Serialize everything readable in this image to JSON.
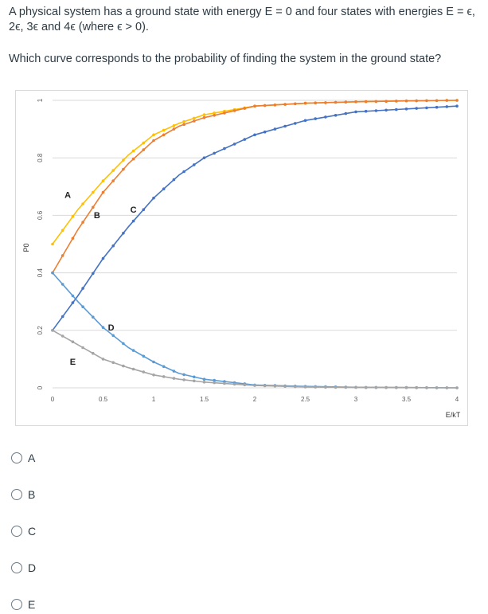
{
  "question": {
    "line1": "A physical system has a ground state with energy E = 0 and four states with energies E = ϵ, 2ϵ, 3ϵ and 4ϵ (where ϵ > 0).",
    "line2": "Which curve corresponds to the probability of finding the system in the ground state?"
  },
  "chart_data": {
    "type": "line",
    "xlabel": "E/kT",
    "ylabel": "P0",
    "xlim": [
      0,
      4
    ],
    "ylim": [
      0,
      1
    ],
    "x_ticks": [
      "0",
      "0.5",
      "1",
      "1.5",
      "2",
      "2.5",
      "3",
      "3.5",
      "4"
    ],
    "y_ticks": [
      "0",
      "0.2",
      "0.4",
      "0.6",
      "0.8",
      "1"
    ],
    "grid": "horizontal",
    "series": [
      {
        "name": "A",
        "color": "#ffc000",
        "label_at": [
          0.15,
          0.66
        ],
        "x": [
          0,
          0.25,
          0.5,
          0.75,
          1,
          1.25,
          1.5,
          2,
          2.5,
          3,
          3.5,
          4
        ],
        "y": [
          0.5,
          0.62,
          0.72,
          0.81,
          0.88,
          0.92,
          0.95,
          0.98,
          0.99,
          0.995,
          0.998,
          1.0
        ]
      },
      {
        "name": "B",
        "color": "#ed7d31",
        "label_at": [
          0.44,
          0.59
        ],
        "x": [
          0,
          0.25,
          0.5,
          0.75,
          1,
          1.25,
          1.5,
          2,
          2.5,
          3,
          3.5,
          4
        ],
        "y": [
          0.4,
          0.55,
          0.68,
          0.78,
          0.86,
          0.91,
          0.94,
          0.98,
          0.99,
          0.995,
          0.998,
          1.0
        ]
      },
      {
        "name": "C",
        "color": "#4472c4",
        "label_at": [
          0.8,
          0.61
        ],
        "x": [
          0,
          0.25,
          0.5,
          0.75,
          1,
          1.25,
          1.5,
          2,
          2.5,
          3,
          3.5,
          4
        ],
        "y": [
          0.2,
          0.32,
          0.45,
          0.56,
          0.66,
          0.74,
          0.8,
          0.88,
          0.93,
          0.96,
          0.97,
          0.98
        ]
      },
      {
        "name": "D",
        "color": "#5b9bd5",
        "label_at": [
          0.58,
          0.2
        ],
        "x": [
          0,
          0.25,
          0.5,
          0.75,
          1,
          1.25,
          1.5,
          2,
          2.5,
          3,
          3.5,
          4
        ],
        "y": [
          0.4,
          0.3,
          0.21,
          0.14,
          0.09,
          0.05,
          0.03,
          0.01,
          0.005,
          0.002,
          0.001,
          0.0
        ]
      },
      {
        "name": "E",
        "color": "#a5a5a5",
        "label_at": [
          0.2,
          0.08
        ],
        "x": [
          0,
          0.25,
          0.5,
          0.75,
          1,
          1.25,
          1.5,
          2,
          2.5,
          3,
          3.5,
          4
        ],
        "y": [
          0.2,
          0.15,
          0.1,
          0.07,
          0.045,
          0.03,
          0.02,
          0.008,
          0.003,
          0.001,
          0.0005,
          0.0
        ]
      }
    ]
  },
  "choices": [
    {
      "label": "A"
    },
    {
      "label": "B"
    },
    {
      "label": "C"
    },
    {
      "label": "D"
    },
    {
      "label": "E"
    }
  ]
}
